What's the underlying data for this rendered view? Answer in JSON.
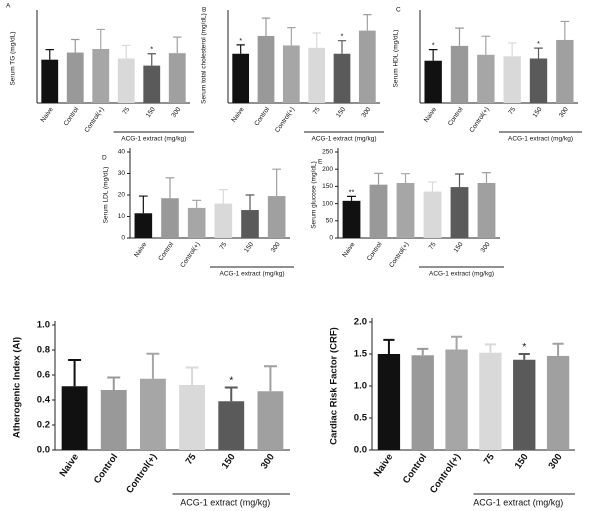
{
  "chart_data": [
    {
      "type": "bar",
      "panel": "A",
      "y_label": "Serum TG (mg/dL)",
      "ylim": [
        0,
        150
      ],
      "categories": [
        "Naive",
        "Control",
        "Control(+)",
        "75",
        "150",
        "300"
      ],
      "group_label": "ACG-1 extract (mg/kg)",
      "colors": [
        "#111111",
        "#999999",
        "#a6a6a6",
        "#d9d9d9",
        "#5a5a5a",
        "#a0a0a0"
      ],
      "values": [
        73,
        85,
        91,
        75,
        63,
        84
      ],
      "errors": [
        17,
        22,
        33,
        22,
        20,
        27
      ],
      "significance": [
        null,
        null,
        null,
        null,
        "*",
        null
      ]
    },
    {
      "type": "bar",
      "panel": "B",
      "y_label": "Serum total cholesterol (mg/dL)",
      "ylim": [
        0,
        150
      ],
      "categories": [
        "Naive",
        "Control",
        "Control(+)",
        "75",
        "150",
        "300"
      ],
      "group_label": "ACG-1 extract (mg/kg)",
      "colors": [
        "#111111",
        "#999999",
        "#a6a6a6",
        "#d9d9d9",
        "#5a5a5a",
        "#a0a0a0"
      ],
      "values": [
        83,
        113,
        97,
        93,
        83,
        122
      ],
      "errors": [
        15,
        30,
        30,
        25,
        22,
        27
      ],
      "significance": [
        "*",
        null,
        null,
        null,
        "*",
        null
      ]
    },
    {
      "type": "bar",
      "panel": "C",
      "y_label": "Serum HDL (mg/dL)",
      "ylim": [
        0,
        120
      ],
      "categories": [
        "Naive",
        "Control",
        "Control(+)",
        "75",
        "150",
        "300"
      ],
      "group_label": "ACG-1 extract (mg/kg)",
      "colors": [
        "#111111",
        "#999999",
        "#a6a6a6",
        "#d9d9d9",
        "#5a5a5a",
        "#a0a0a0"
      ],
      "values": [
        57,
        77,
        65,
        63,
        60,
        85
      ],
      "errors": [
        15,
        24,
        25,
        18,
        14,
        25
      ],
      "significance": [
        "*",
        null,
        null,
        null,
        "*",
        null
      ]
    },
    {
      "type": "bar",
      "panel": "D",
      "y_label": "Serum LDL (mg/dL)",
      "ylim": [
        0,
        40
      ],
      "yticks": [
        0,
        10,
        20,
        30,
        40
      ],
      "categories": [
        "Naive",
        "Control",
        "Control(+)",
        "75",
        "150",
        "300"
      ],
      "group_label": "ACG-1 extract (mg/kg)",
      "colors": [
        "#111111",
        "#999999",
        "#a6a6a6",
        "#d9d9d9",
        "#5a5a5a",
        "#a0a0a0"
      ],
      "values": [
        11.5,
        18.5,
        14,
        16,
        13,
        19.5
      ],
      "errors": [
        8,
        9.5,
        3.5,
        6.5,
        7,
        12.5
      ]
    },
    {
      "type": "bar",
      "panel": "E",
      "y_label": "Serum glucose (mg/dL)",
      "ylim": [
        0,
        250
      ],
      "yticks": [
        0,
        50,
        100,
        150,
        200,
        250
      ],
      "categories": [
        "Naive",
        "Control",
        "Control(+)",
        "75",
        "150",
        "300"
      ],
      "group_label": "ACG-1 extract  (mg/kg)",
      "colors": [
        "#111111",
        "#999999",
        "#a6a6a6",
        "#d9d9d9",
        "#5a5a5a",
        "#a0a0a0"
      ],
      "values": [
        108,
        155,
        160,
        135,
        148,
        160
      ],
      "errors": [
        13,
        33,
        27,
        28,
        38,
        30
      ],
      "significance": [
        "**",
        null,
        null,
        null,
        null,
        null
      ]
    },
    {
      "type": "bar",
      "y_label": "Atherogenic Index (AI)",
      "ylim": [
        0,
        1
      ],
      "yticks": [
        {
          "value": 0,
          "label": "0.0"
        },
        0.2,
        0.4,
        0.6,
        0.8,
        {
          "value": 1,
          "label": "1.0"
        }
      ],
      "categories": [
        "Naive",
        "Control",
        "Control(+)",
        "75",
        "150",
        "300"
      ],
      "group_label": "ACG-1 extract  (mg/kg)",
      "colors": [
        "#111111",
        "#999999",
        "#a6a6a6",
        "#d9d9d9",
        "#5a5a5a",
        "#a0a0a0"
      ],
      "values": [
        0.51,
        0.48,
        0.57,
        0.52,
        0.39,
        0.47
      ],
      "errors": [
        0.21,
        0.1,
        0.2,
        0.14,
        0.11,
        0.2
      ],
      "significance": [
        null,
        null,
        null,
        null,
        "*",
        null
      ]
    },
    {
      "type": "bar",
      "y_label": "Cardiac Risk Factor (CRF)",
      "ylim": [
        0,
        2
      ],
      "yticks": [
        {
          "value": 0,
          "label": "0.0"
        },
        0.5,
        {
          "value": 1,
          "label": "1.0"
        },
        1.5,
        {
          "value": 2,
          "label": "2.0"
        }
      ],
      "categories": [
        "Naive",
        "Control",
        "Control(+)",
        "75",
        "150",
        "300"
      ],
      "group_label": "ACG-1 extract  (mg/kg)",
      "colors": [
        "#111111",
        "#999999",
        "#a6a6a6",
        "#d9d9d9",
        "#5a5a5a",
        "#a0a0a0"
      ],
      "values": [
        1.5,
        1.48,
        1.57,
        1.52,
        1.41,
        1.47
      ],
      "errors": [
        0.22,
        0.1,
        0.2,
        0.13,
        0.09,
        0.19
      ],
      "significance": [
        null,
        null,
        null,
        null,
        "*",
        null
      ]
    }
  ]
}
